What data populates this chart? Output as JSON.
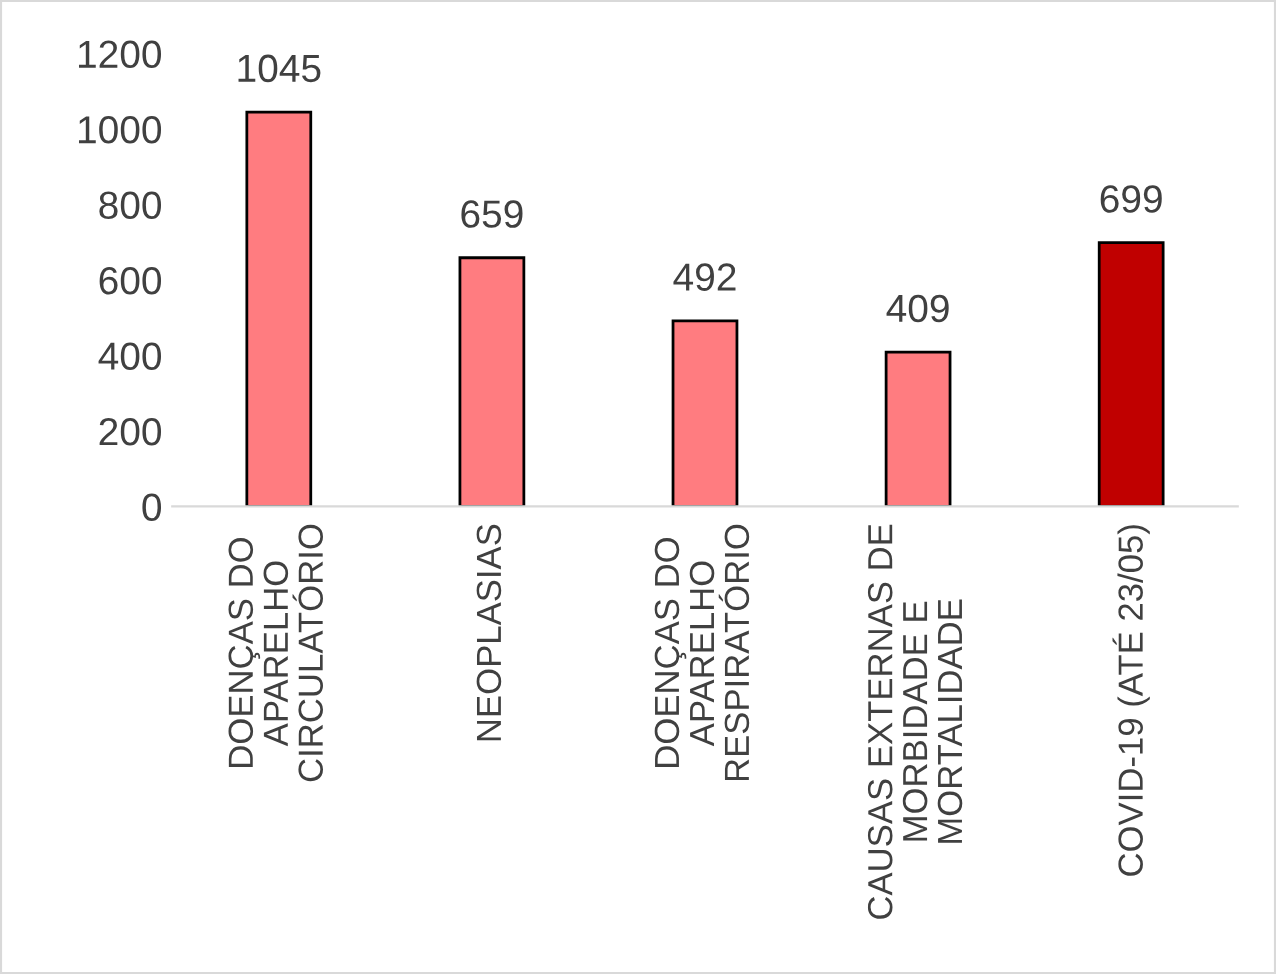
{
  "chart_data": {
    "type": "bar",
    "categories": [
      "DOENÇAS DO\nAPARELHO\nCIRCULATÓRIO",
      "NEOPLASIAS",
      "DOENÇAS DO\nAPARELHO\nRESPIRATÓRIO",
      "CAUSAS EXTERNAS DE\nMORBIDADE E\nMORTALIDADE",
      "COVID-19 (ATÉ 23/05)"
    ],
    "values": [
      1045,
      659,
      492,
      409,
      699
    ],
    "colors": [
      "#ff7c80",
      "#ff7c80",
      "#ff7c80",
      "#ff7c80",
      "#c00000"
    ],
    "ylim": [
      0,
      1200
    ],
    "yticks": [
      0,
      200,
      400,
      600,
      800,
      1000,
      1200
    ],
    "data_labels": true,
    "grid": false,
    "legend": false
  }
}
